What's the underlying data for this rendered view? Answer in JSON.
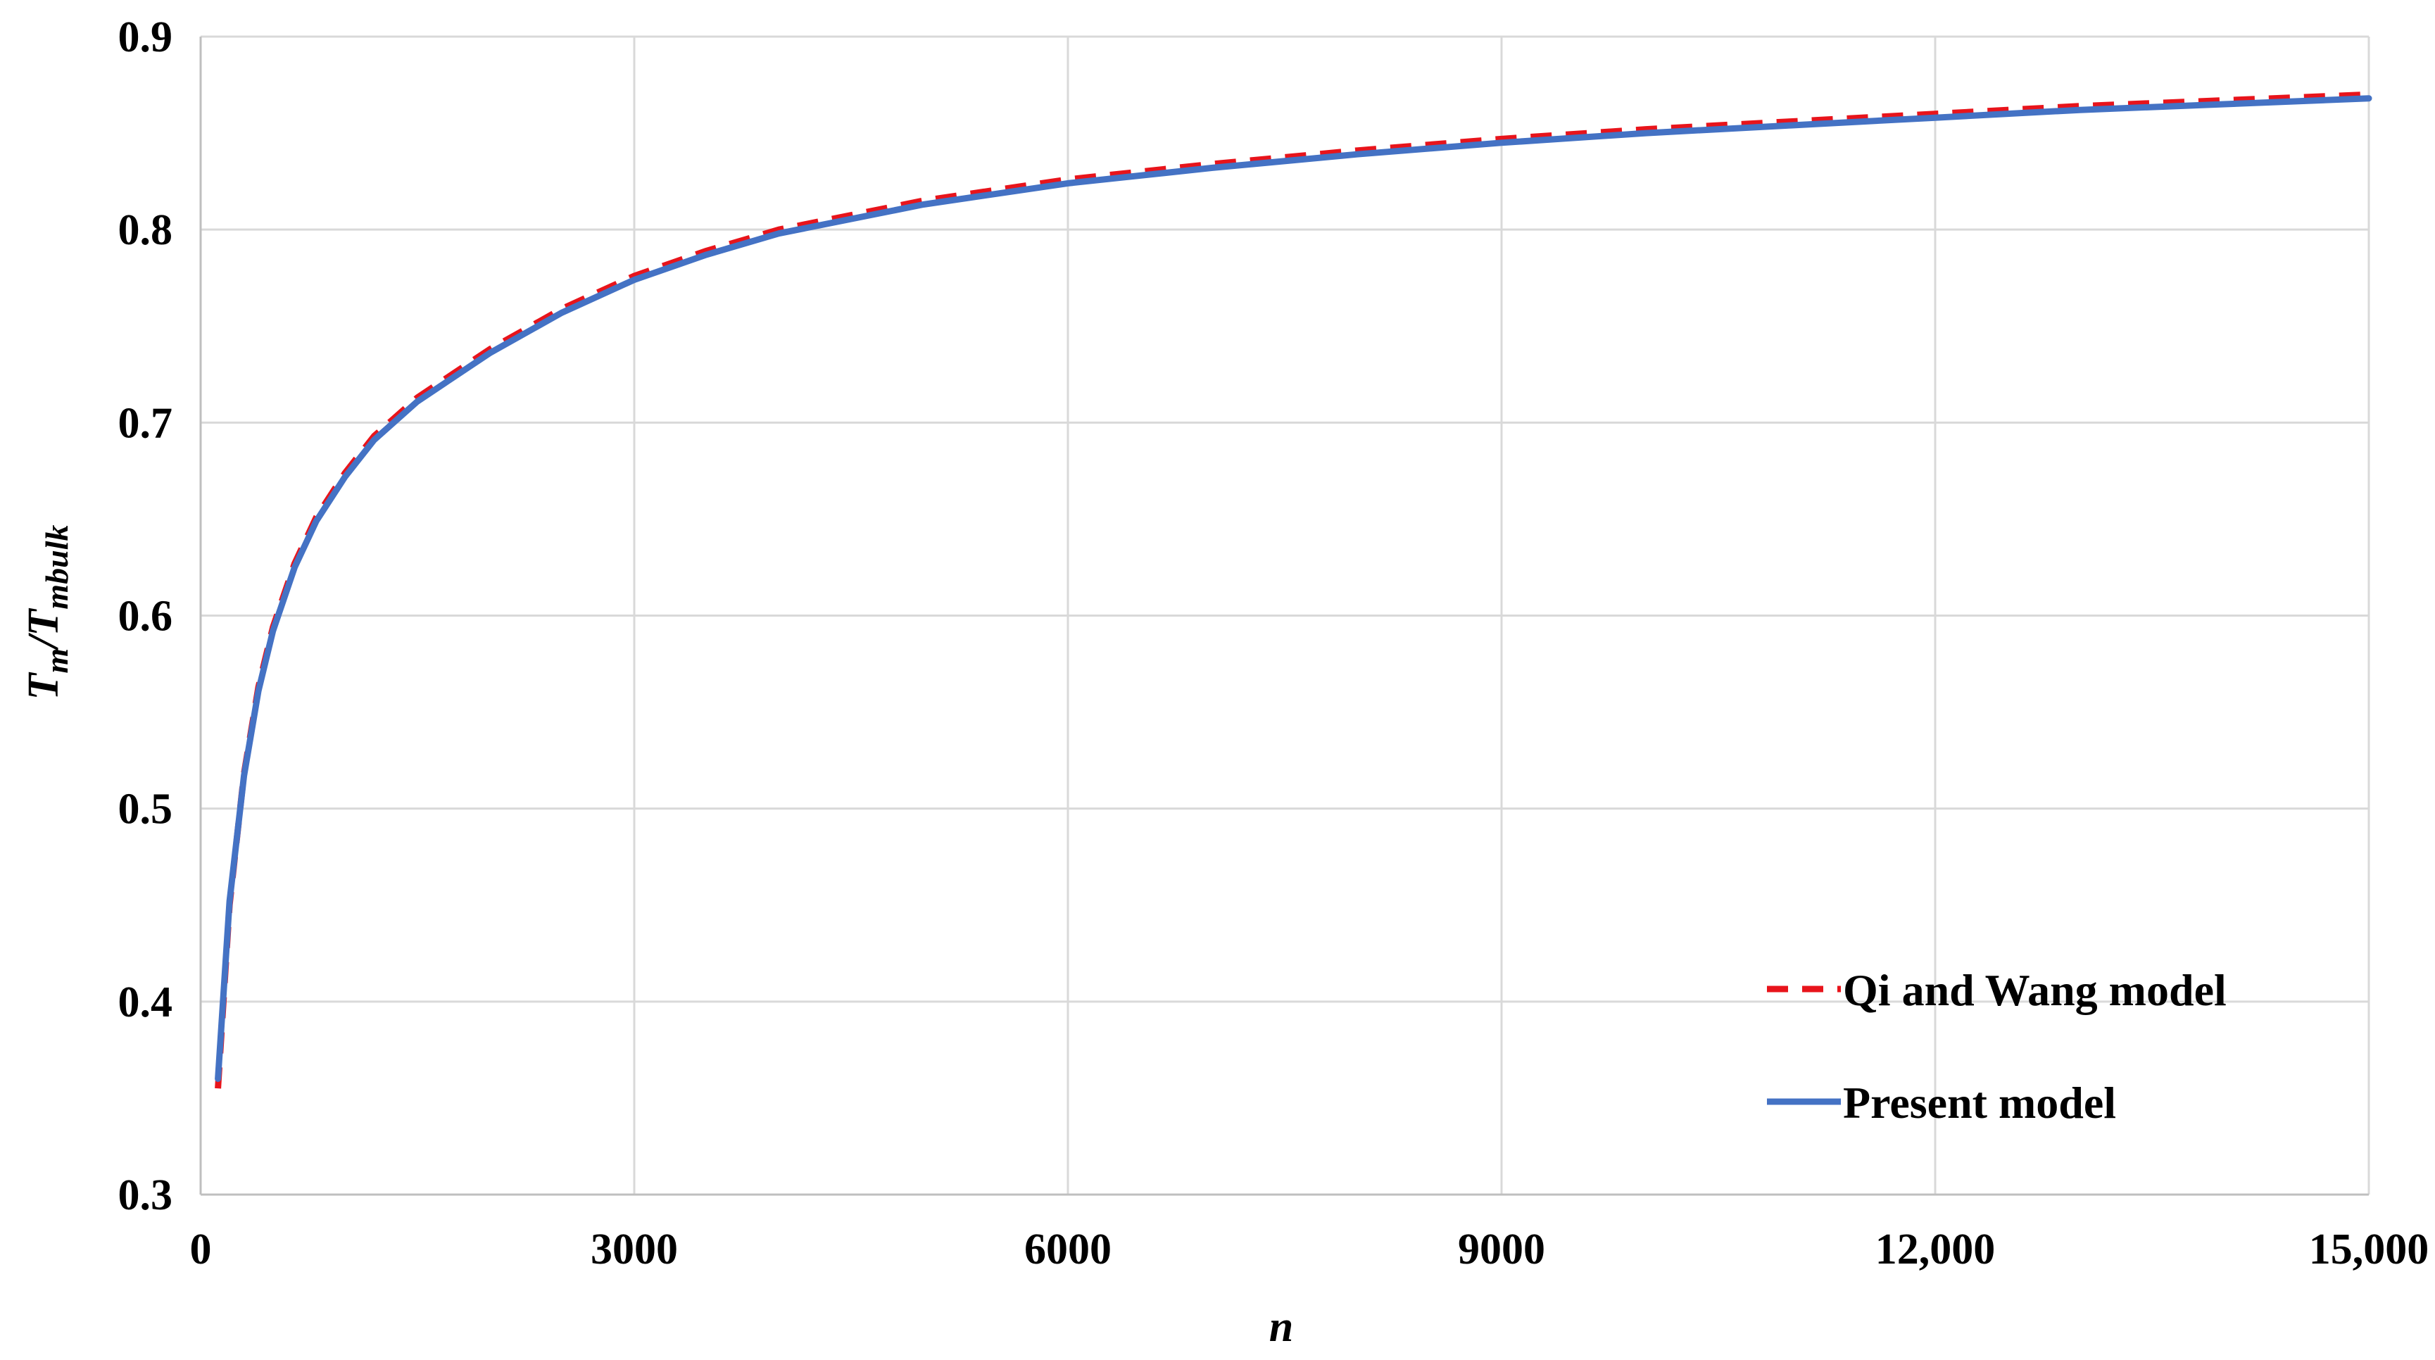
{
  "chart_data": {
    "type": "line",
    "title": "",
    "xlabel": "n",
    "ylabel": {
      "main": "T",
      "main_sub": "m",
      "sep": "/T",
      "sep_sub": "mbulk"
    },
    "xlim": [
      0,
      15000
    ],
    "ylim": [
      0.3,
      0.9
    ],
    "xticks": [
      0,
      3000,
      6000,
      9000,
      12000,
      15000
    ],
    "xtick_labels": [
      "0",
      "3000",
      "6000",
      "9000",
      "12,000",
      "15,000"
    ],
    "yticks": [
      0.3,
      0.4,
      0.5,
      0.6,
      0.7,
      0.8,
      0.9
    ],
    "ytick_labels": [
      "0.3",
      "0.4",
      "0.5",
      "0.6",
      "0.7",
      "0.8",
      "0.9"
    ],
    "grid": true,
    "legend_position": "bottom-right",
    "series": [
      {
        "name": "Qi and Wang model",
        "color": "#e8141b",
        "style": "dashed",
        "x": [
          120,
          200,
          300,
          400,
          500,
          650,
          800,
          1000,
          1200,
          1500,
          2000,
          2500,
          3000,
          3500,
          4000,
          5000,
          6000,
          7000,
          8000,
          9000,
          10000,
          11000,
          12000,
          13000,
          14000,
          15000
        ],
        "y": [
          0.355,
          0.45,
          0.518,
          0.563,
          0.594,
          0.627,
          0.651,
          0.674,
          0.693,
          0.713,
          0.738,
          0.759,
          0.776,
          0.789,
          0.8,
          0.815,
          0.826,
          0.834,
          0.841,
          0.847,
          0.852,
          0.856,
          0.86,
          0.864,
          0.867,
          0.87
        ]
      },
      {
        "name": "Present model",
        "color": "#4472c4",
        "style": "solid",
        "x": [
          120,
          200,
          300,
          400,
          500,
          650,
          800,
          1000,
          1200,
          1500,
          2000,
          2500,
          3000,
          3500,
          4000,
          5000,
          6000,
          7000,
          8000,
          9000,
          10000,
          11000,
          12000,
          13000,
          14000,
          15000
        ],
        "y": [
          0.36,
          0.452,
          0.517,
          0.561,
          0.592,
          0.625,
          0.649,
          0.672,
          0.691,
          0.711,
          0.736,
          0.757,
          0.774,
          0.787,
          0.798,
          0.813,
          0.824,
          0.832,
          0.839,
          0.845,
          0.85,
          0.854,
          0.858,
          0.862,
          0.865,
          0.868
        ]
      }
    ]
  }
}
